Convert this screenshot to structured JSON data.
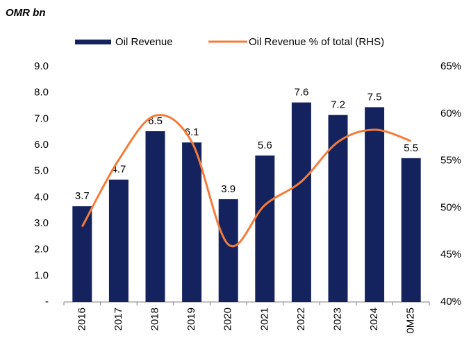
{
  "chart_data": {
    "type": "bar",
    "title": "OMR bn",
    "categories": [
      "2016",
      "2017",
      "2018",
      "2019",
      "2020",
      "2021",
      "2022",
      "2023",
      "2024",
      "0M25"
    ],
    "series": [
      {
        "name": "Oil Revenue",
        "color": "#14235e",
        "values": [
          3.66,
          4.68,
          6.53,
          6.1,
          3.93,
          5.6,
          7.63,
          7.15,
          7.45,
          5.5
        ],
        "value_labels": [
          "3.7",
          "4.7",
          "6.5",
          "6.1",
          "3.9",
          "5.6",
          "7.6",
          "7.2",
          "7.5",
          "5.5"
        ]
      },
      {
        "name": "Oil Revenue % of total (RHS)",
        "color": "#f47b3a",
        "type": "line",
        "axis": "y2",
        "values": [
          48.0,
          55.1,
          59.8,
          57.0,
          46.1,
          50.3,
          52.8,
          57.0,
          58.3,
          57.1
        ]
      }
    ],
    "ylim": [
      0,
      9
    ],
    "yticks": [
      {
        "value": 0,
        "label": "-"
      },
      {
        "value": 1,
        "label": "1.0"
      },
      {
        "value": 2,
        "label": "2.0"
      },
      {
        "value": 3,
        "label": "3.0"
      },
      {
        "value": 4,
        "label": "4.0"
      },
      {
        "value": 5,
        "label": "5.0"
      },
      {
        "value": 6,
        "label": "6.0"
      },
      {
        "value": 7,
        "label": "7.0"
      },
      {
        "value": 8,
        "label": "8.0"
      },
      {
        "value": 9,
        "label": "9.0"
      }
    ],
    "y2lim": [
      40,
      65
    ],
    "y2ticks": [
      {
        "value": 40,
        "label": "40%"
      },
      {
        "value": 45,
        "label": "45%"
      },
      {
        "value": 50,
        "label": "50%"
      },
      {
        "value": 55,
        "label": "55%"
      },
      {
        "value": 60,
        "label": "60%"
      },
      {
        "value": 65,
        "label": "65%"
      }
    ],
    "legend": "top"
  }
}
